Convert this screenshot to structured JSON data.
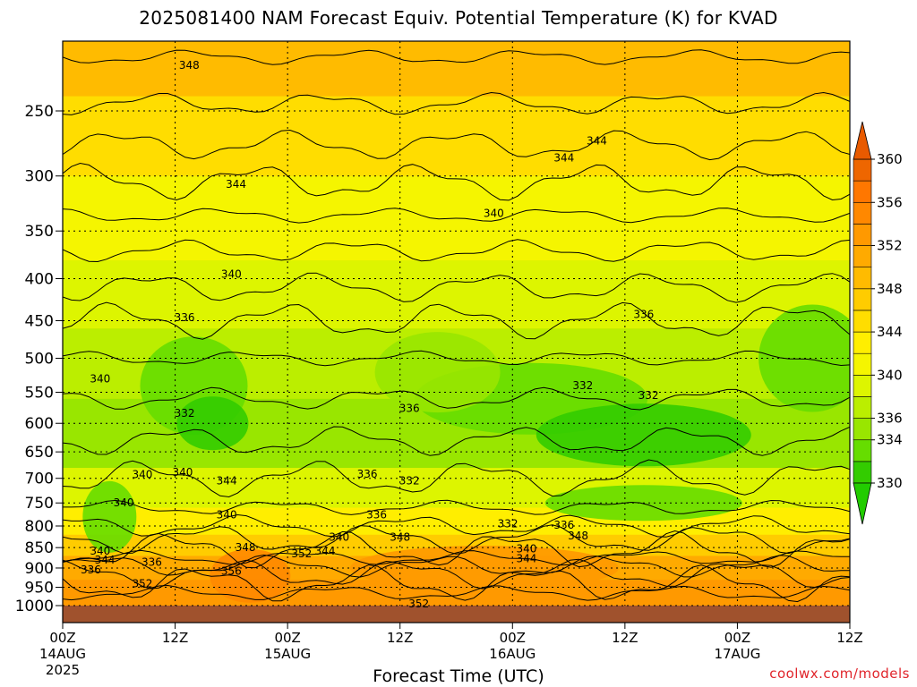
{
  "chart_data": {
    "type": "heatmap",
    "title": "2025081400 NAM Forecast Equiv. Potential Temperature (K) for KVAD",
    "xlabel": "Forecast Time (UTC)",
    "ylabel": "",
    "y_ticks": [
      250,
      300,
      350,
      400,
      450,
      500,
      550,
      600,
      650,
      700,
      750,
      800,
      850,
      900,
      950,
      1000
    ],
    "ylim": [
      1000,
      200
    ],
    "y_scale": "log",
    "x_ticks": [
      {
        "l1": "00Z",
        "l2": "14AUG",
        "l3": "2025"
      },
      {
        "l1": "12Z",
        "l2": "",
        "l3": ""
      },
      {
        "l1": "00Z",
        "l2": "15AUG",
        "l3": ""
      },
      {
        "l1": "12Z",
        "l2": "",
        "l3": ""
      },
      {
        "l1": "00Z",
        "l2": "16AUG",
        "l3": ""
      },
      {
        "l1": "12Z",
        "l2": "",
        "l3": ""
      },
      {
        "l1": "00Z",
        "l2": "17AUG",
        "l3": ""
      },
      {
        "l1": "12Z",
        "l2": "",
        "l3": ""
      }
    ],
    "colorbar": {
      "levels": [
        330,
        332,
        334,
        336,
        338,
        340,
        342,
        344,
        346,
        348,
        350,
        352,
        354,
        356,
        358,
        360
      ],
      "labels": [
        330,
        334,
        336,
        340,
        344,
        348,
        352,
        356,
        360
      ],
      "colors": [
        "#33cc00",
        "#66dd00",
        "#99e600",
        "#bbee00",
        "#ddf500",
        "#f5f500",
        "#ffee00",
        "#ffdd00",
        "#ffcc00",
        "#ffbb00",
        "#ffaa00",
        "#ff9900",
        "#ff8800",
        "#ff7700",
        "#ee6600"
      ]
    },
    "contour_labels": [
      {
        "text": "348",
        "hr": 13.5,
        "p": 220
      },
      {
        "text": "344",
        "hr": 53.5,
        "p": 285
      },
      {
        "text": "344",
        "hr": 18.5,
        "p": 307
      },
      {
        "text": "340",
        "hr": 46,
        "p": 333
      },
      {
        "text": "344",
        "hr": 57,
        "p": 272
      },
      {
        "text": "340",
        "hr": 18,
        "p": 395
      },
      {
        "text": "336",
        "hr": 13,
        "p": 446
      },
      {
        "text": "336",
        "hr": 62,
        "p": 442
      },
      {
        "text": "340",
        "hr": 4,
        "p": 530
      },
      {
        "text": "332",
        "hr": 13,
        "p": 583
      },
      {
        "text": "336",
        "hr": 37,
        "p": 575
      },
      {
        "text": "332",
        "hr": 55.5,
        "p": 540
      },
      {
        "text": "332",
        "hr": 62.5,
        "p": 555
      },
      {
        "text": "340",
        "hr": 8.5,
        "p": 693
      },
      {
        "text": "340",
        "hr": 12.8,
        "p": 688
      },
      {
        "text": "344",
        "hr": 17.5,
        "p": 705
      },
      {
        "text": "340",
        "hr": 6.5,
        "p": 750
      },
      {
        "text": "340",
        "hr": 17.5,
        "p": 775
      },
      {
        "text": "336",
        "hr": 32.5,
        "p": 692
      },
      {
        "text": "332",
        "hr": 37,
        "p": 705
      },
      {
        "text": "336",
        "hr": 33.5,
        "p": 775
      },
      {
        "text": "332",
        "hr": 47.5,
        "p": 795
      },
      {
        "text": "336",
        "hr": 53.5,
        "p": 798
      },
      {
        "text": "348",
        "hr": 36,
        "p": 825
      },
      {
        "text": "348",
        "hr": 55,
        "p": 822
      },
      {
        "text": "340",
        "hr": 29.5,
        "p": 826
      },
      {
        "text": "348",
        "hr": 19.5,
        "p": 850
      },
      {
        "text": "352",
        "hr": 25.5,
        "p": 865
      },
      {
        "text": "344",
        "hr": 28,
        "p": 858
      },
      {
        "text": "340",
        "hr": 49.5,
        "p": 853
      },
      {
        "text": "344",
        "hr": 49.5,
        "p": 877
      },
      {
        "text": "340",
        "hr": 4,
        "p": 858
      },
      {
        "text": "344",
        "hr": 4.5,
        "p": 880
      },
      {
        "text": "336",
        "hr": 3,
        "p": 905
      },
      {
        "text": "336",
        "hr": 9.5,
        "p": 885
      },
      {
        "text": "356",
        "hr": 18,
        "p": 908
      },
      {
        "text": "352",
        "hr": 8.5,
        "p": 940
      },
      {
        "text": "352",
        "hr": 38,
        "p": 995
      }
    ]
  },
  "credit": "coolwx.com/models"
}
